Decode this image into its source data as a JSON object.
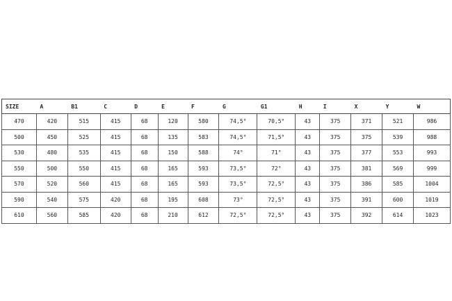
{
  "table": {
    "headers": [
      "SIZE",
      "A",
      "B1",
      "C",
      "D",
      "E",
      "F",
      "G",
      "G1",
      "H",
      "I",
      "X",
      "Y",
      "W"
    ],
    "rows": [
      [
        "470",
        "420",
        "515",
        "415",
        "68",
        "120",
        "580",
        "74,5°",
        "70,5°",
        "43",
        "375",
        "371",
        "521",
        "986"
      ],
      [
        "500",
        "450",
        "525",
        "415",
        "68",
        "135",
        "583",
        "74,5°",
        "71,5°",
        "43",
        "375",
        "375",
        "539",
        "988"
      ],
      [
        "530",
        "480",
        "535",
        "415",
        "68",
        "150",
        "588",
        "74°",
        "71°",
        "43",
        "375",
        "377",
        "553",
        "993"
      ],
      [
        "550",
        "500",
        "550",
        "415",
        "68",
        "165",
        "593",
        "73,5°",
        "72°",
        "43",
        "375",
        "381",
        "569",
        "999"
      ],
      [
        "570",
        "520",
        "560",
        "415",
        "68",
        "165",
        "593",
        "73,5°",
        "72,5°",
        "43",
        "375",
        "386",
        "585",
        "1004"
      ],
      [
        "590",
        "540",
        "575",
        "420",
        "68",
        "195",
        "608",
        "73°",
        "72,5°",
        "43",
        "375",
        "391",
        "600",
        "1019"
      ],
      [
        "610",
        "560",
        "585",
        "420",
        "68",
        "210",
        "612",
        "72,5°",
        "72,5°",
        "43",
        "375",
        "392",
        "614",
        "1023"
      ]
    ]
  }
}
